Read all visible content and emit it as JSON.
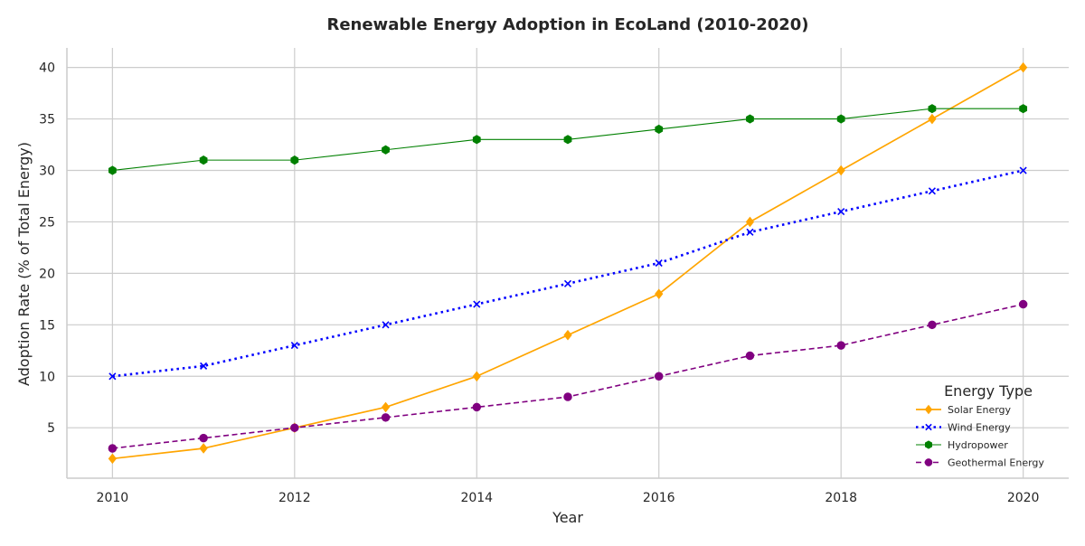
{
  "chart_data": {
    "type": "line",
    "title": "Renewable Energy Adoption in EcoLand (2010-2020)",
    "xlabel": "Year",
    "ylabel": "Adoption Rate (% of Total Energy)",
    "x": [
      2010,
      2011,
      2012,
      2013,
      2014,
      2015,
      2016,
      2017,
      2018,
      2019,
      2020
    ],
    "xlim": [
      2009.5,
      2020.5
    ],
    "ylim": [
      0.1,
      41.9
    ],
    "x_ticks": [
      2010,
      2012,
      2014,
      2016,
      2018,
      2020
    ],
    "y_ticks": [
      5,
      10,
      15,
      20,
      25,
      30,
      35,
      40
    ],
    "grid": true,
    "legend": {
      "title": "Energy Type",
      "placement": "lower-right"
    },
    "series": [
      {
        "name": "Solar Energy",
        "values": [
          2,
          3,
          5,
          7,
          10,
          14,
          18,
          25,
          30,
          35,
          40
        ],
        "color": "#ffa500",
        "marker": "diamond",
        "linestyle": "solid"
      },
      {
        "name": "Wind Energy",
        "values": [
          10,
          11,
          13,
          15,
          17,
          19,
          21,
          24,
          26,
          28,
          30
        ],
        "color": "#0000ff",
        "marker": "x",
        "linestyle": "dotted"
      },
      {
        "name": "Hydropower",
        "values": [
          30,
          31,
          31,
          32,
          33,
          33,
          34,
          35,
          35,
          36,
          36
        ],
        "color": "#008000",
        "marker": "hexagon",
        "linestyle": "solid-thin"
      },
      {
        "name": "Geothermal Energy",
        "values": [
          3,
          4,
          5,
          6,
          7,
          8,
          10,
          12,
          13,
          15,
          17
        ],
        "color": "#800080",
        "marker": "circle",
        "linestyle": "dashed"
      }
    ]
  }
}
